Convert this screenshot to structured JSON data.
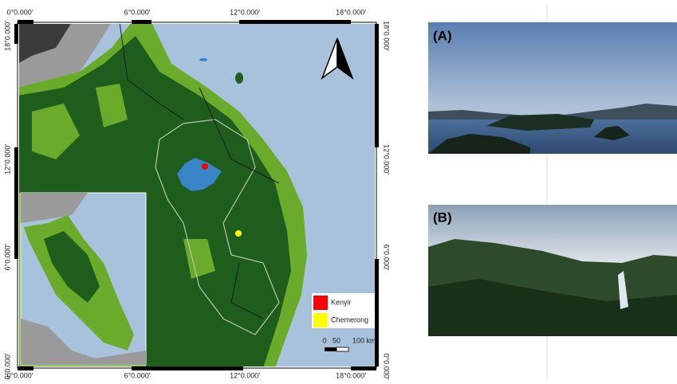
{
  "map": {
    "top_labels": [
      "0°0.000′",
      "6°0.000′",
      "12°0.000′",
      "18°0.000′"
    ],
    "bottom_labels": [
      "0°0.000′",
      "6°0.000′",
      "12°0.000′",
      "18°0.000′"
    ],
    "left_labels": [
      "18°0.000′",
      "12°0.000′",
      "6°0.000′",
      "0°0.000′"
    ],
    "right_labels": [
      "18°0.000′",
      "12°0.000′",
      "6°0.000′",
      "0°0.000′"
    ],
    "legend": [
      {
        "label": "Kenyir",
        "color": "#ff0000"
      },
      {
        "label": "Chemerong",
        "color": "#ffff00"
      }
    ],
    "scale_bar": {
      "labels": [
        "0",
        "50",
        "100 km"
      ]
    }
  },
  "photos": [
    {
      "label": "(A)"
    },
    {
      "label": "(B)"
    }
  ]
}
